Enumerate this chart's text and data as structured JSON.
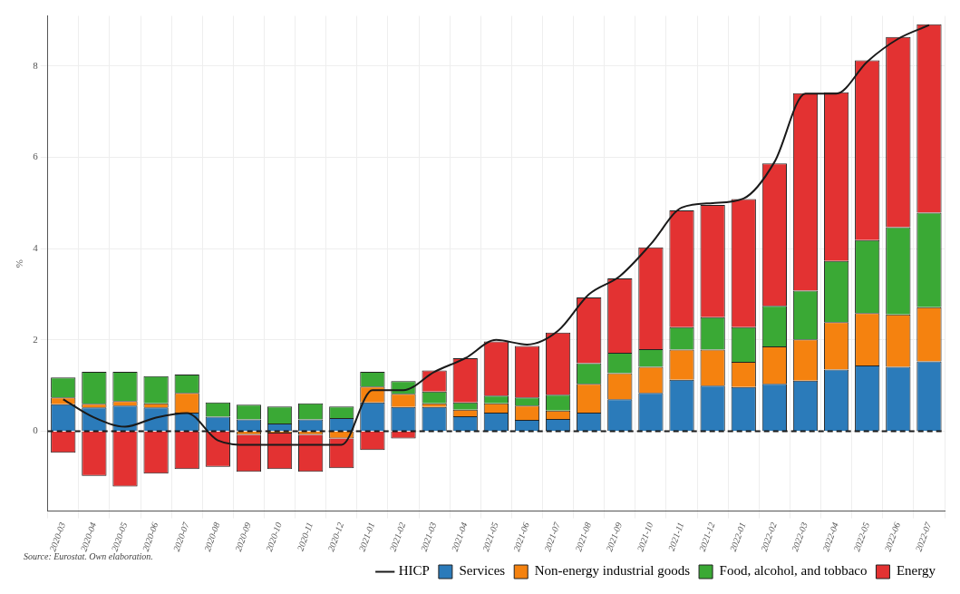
{
  "chart_data": {
    "type": "bar",
    "stacked": true,
    "ylabel": "%",
    "categories": [
      "2020-03",
      "2020-04",
      "2020-05",
      "2020-06",
      "2020-07",
      "2020-08",
      "2020-09",
      "2020-10",
      "2020-11",
      "2020-12",
      "2021-01",
      "2021-02",
      "2021-03",
      "2021-04",
      "2021-05",
      "2021-06",
      "2021-07",
      "2021-08",
      "2021-09",
      "2021-10",
      "2021-11",
      "2021-12",
      "2022-01",
      "2022-02",
      "2022-03",
      "2022-04",
      "2022-05",
      "2022-06",
      "2022-07"
    ],
    "series": [
      {
        "name": "HICP",
        "type": "line",
        "color": "#1a1a1a",
        "values": [
          0.7,
          0.3,
          0.1,
          0.3,
          0.4,
          -0.2,
          -0.3,
          -0.3,
          -0.3,
          -0.3,
          0.9,
          0.9,
          1.3,
          1.6,
          2.0,
          1.9,
          2.2,
          3.0,
          3.4,
          4.1,
          4.9,
          5.0,
          5.1,
          5.9,
          7.4,
          7.4,
          8.1,
          8.6,
          8.9
        ]
      },
      {
        "name": "Services",
        "color": "#2b7bba",
        "values": [
          0.59,
          0.52,
          0.56,
          0.52,
          0.41,
          0.32,
          0.26,
          0.17,
          0.26,
          0.29,
          0.63,
          0.53,
          0.53,
          0.33,
          0.41,
          0.25,
          0.27,
          0.41,
          0.7,
          0.84,
          1.13,
          1.0,
          0.97,
          1.04,
          1.11,
          1.35,
          1.44,
          1.41,
          1.53
        ]
      },
      {
        "name": "Non-energy industrial goods",
        "color": "#f5820f",
        "values": [
          0.15,
          0.08,
          0.1,
          0.09,
          0.43,
          0,
          -0.08,
          -0.05,
          -0.08,
          -0.16,
          0.35,
          0.29,
          0.08,
          0.14,
          0.2,
          0.31,
          0.18,
          0.63,
          0.57,
          0.57,
          0.66,
          0.79,
          0.55,
          0.82,
          0.9,
          1.04,
          1.15,
          1.15,
          1.19
        ]
      },
      {
        "name": "Food, alcohol, and tobbaco",
        "color": "#3aa935",
        "values": [
          0.44,
          0.7,
          0.64,
          0.6,
          0.4,
          0.31,
          0.32,
          0.37,
          0.35,
          0.25,
          0.32,
          0.28,
          0.26,
          0.16,
          0.17,
          0.18,
          0.35,
          0.45,
          0.45,
          0.39,
          0.49,
          0.71,
          0.76,
          0.89,
          1.07,
          1.34,
          1.6,
          1.91,
          2.07
        ]
      },
      {
        "name": "Energy",
        "color": "#e33232",
        "values": [
          -0.47,
          -0.98,
          -1.21,
          -0.93,
          -0.83,
          -0.78,
          -0.81,
          -0.78,
          -0.81,
          -0.65,
          -0.41,
          -0.16,
          0.46,
          0.97,
          1.19,
          1.13,
          1.36,
          1.44,
          1.63,
          2.23,
          2.56,
          2.46,
          2.81,
          3.12,
          4.33,
          3.7,
          3.94,
          4.17,
          4.13
        ]
      }
    ],
    "ylim": [
      -1.75,
      9.1
    ],
    "yticks": [
      0,
      2,
      4,
      6,
      8
    ],
    "grid": true,
    "legend": "bottom right",
    "marker": "none",
    "ref_lines": [
      {
        "axis": "y",
        "value": 0,
        "color": "#1a1a1a",
        "line_style": "dashed"
      }
    ],
    "annotations": [
      "Source: Eurostat. Own elaboration."
    ]
  }
}
